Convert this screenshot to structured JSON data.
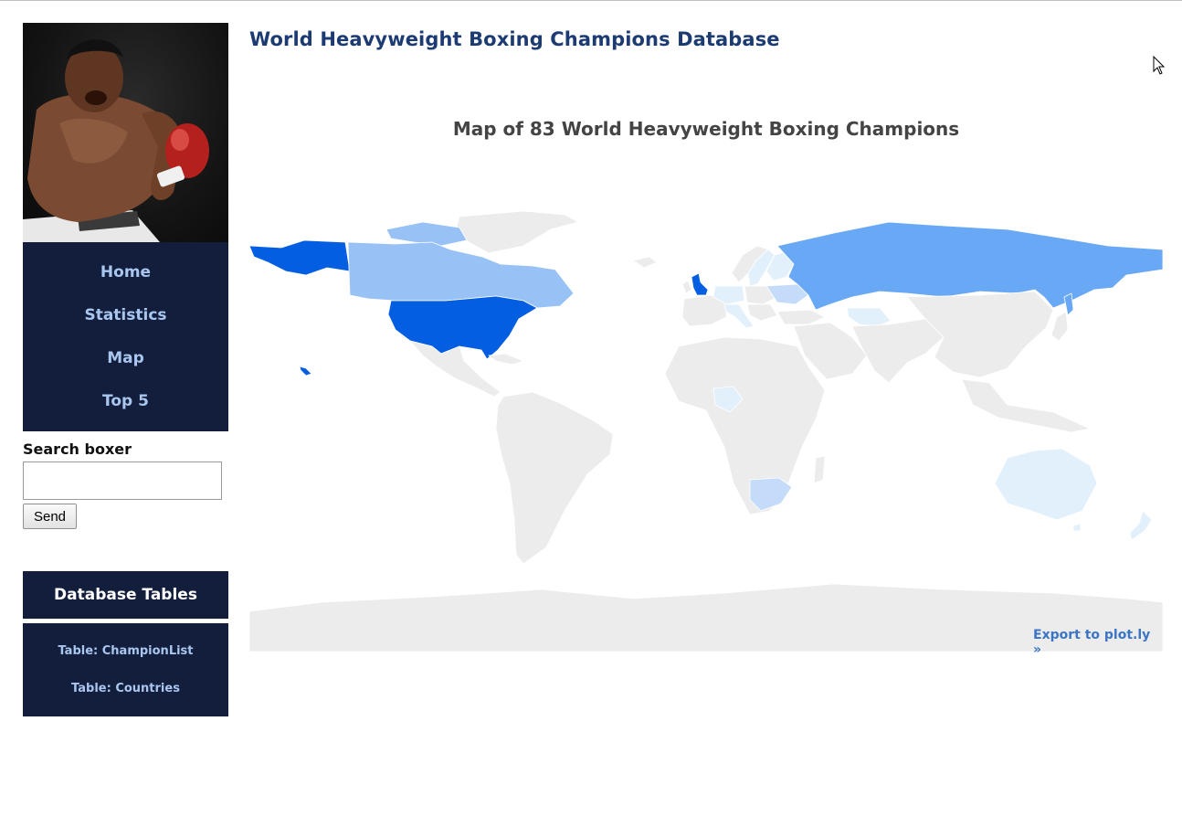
{
  "page": {
    "title": "World Heavyweight Boxing Champions Database"
  },
  "sidebar": {
    "photo_alt": "boxer photo",
    "nav": [
      {
        "label": "Home"
      },
      {
        "label": "Statistics"
      },
      {
        "label": "Map"
      },
      {
        "label": "Top 5"
      }
    ],
    "search": {
      "label": "Search boxer",
      "value": "",
      "placeholder": "",
      "button": "Send"
    },
    "db": {
      "heading": "Database Tables",
      "links": [
        {
          "label": "Table: ChampionList"
        },
        {
          "label": "Table: Countries"
        }
      ]
    }
  },
  "map_chart": {
    "title": "Map of 83 World Heavyweight Boxing Champions",
    "export_label": "Export to plot.ly »",
    "colors": {
      "none": "#ececec",
      "level_1": "#e2f0fc",
      "level_2": "#c4dcfa",
      "level_3": "#98c2f6",
      "level_4": "#68a8f5",
      "level_5": "#045ee1",
      "border": "#ffffff"
    },
    "highlighted_regions": [
      {
        "region": "United States",
        "level": "level_5"
      },
      {
        "region": "Alaska",
        "level": "level_5"
      },
      {
        "region": "United Kingdom",
        "level": "level_5"
      },
      {
        "region": "Canada",
        "level": "level_3"
      },
      {
        "region": "Russia",
        "level": "level_4"
      },
      {
        "region": "South Africa",
        "level": "level_2"
      },
      {
        "region": "Ukraine",
        "level": "level_2"
      },
      {
        "region": "Germany",
        "level": "level_1"
      },
      {
        "region": "Sweden",
        "level": "level_1"
      },
      {
        "region": "Italy",
        "level": "level_1"
      },
      {
        "region": "Kazakhstan",
        "level": "level_1"
      },
      {
        "region": "Australia",
        "level": "level_1"
      },
      {
        "region": "New Zealand",
        "level": "level_1"
      },
      {
        "region": "Nigeria",
        "level": "level_1"
      }
    ]
  }
}
